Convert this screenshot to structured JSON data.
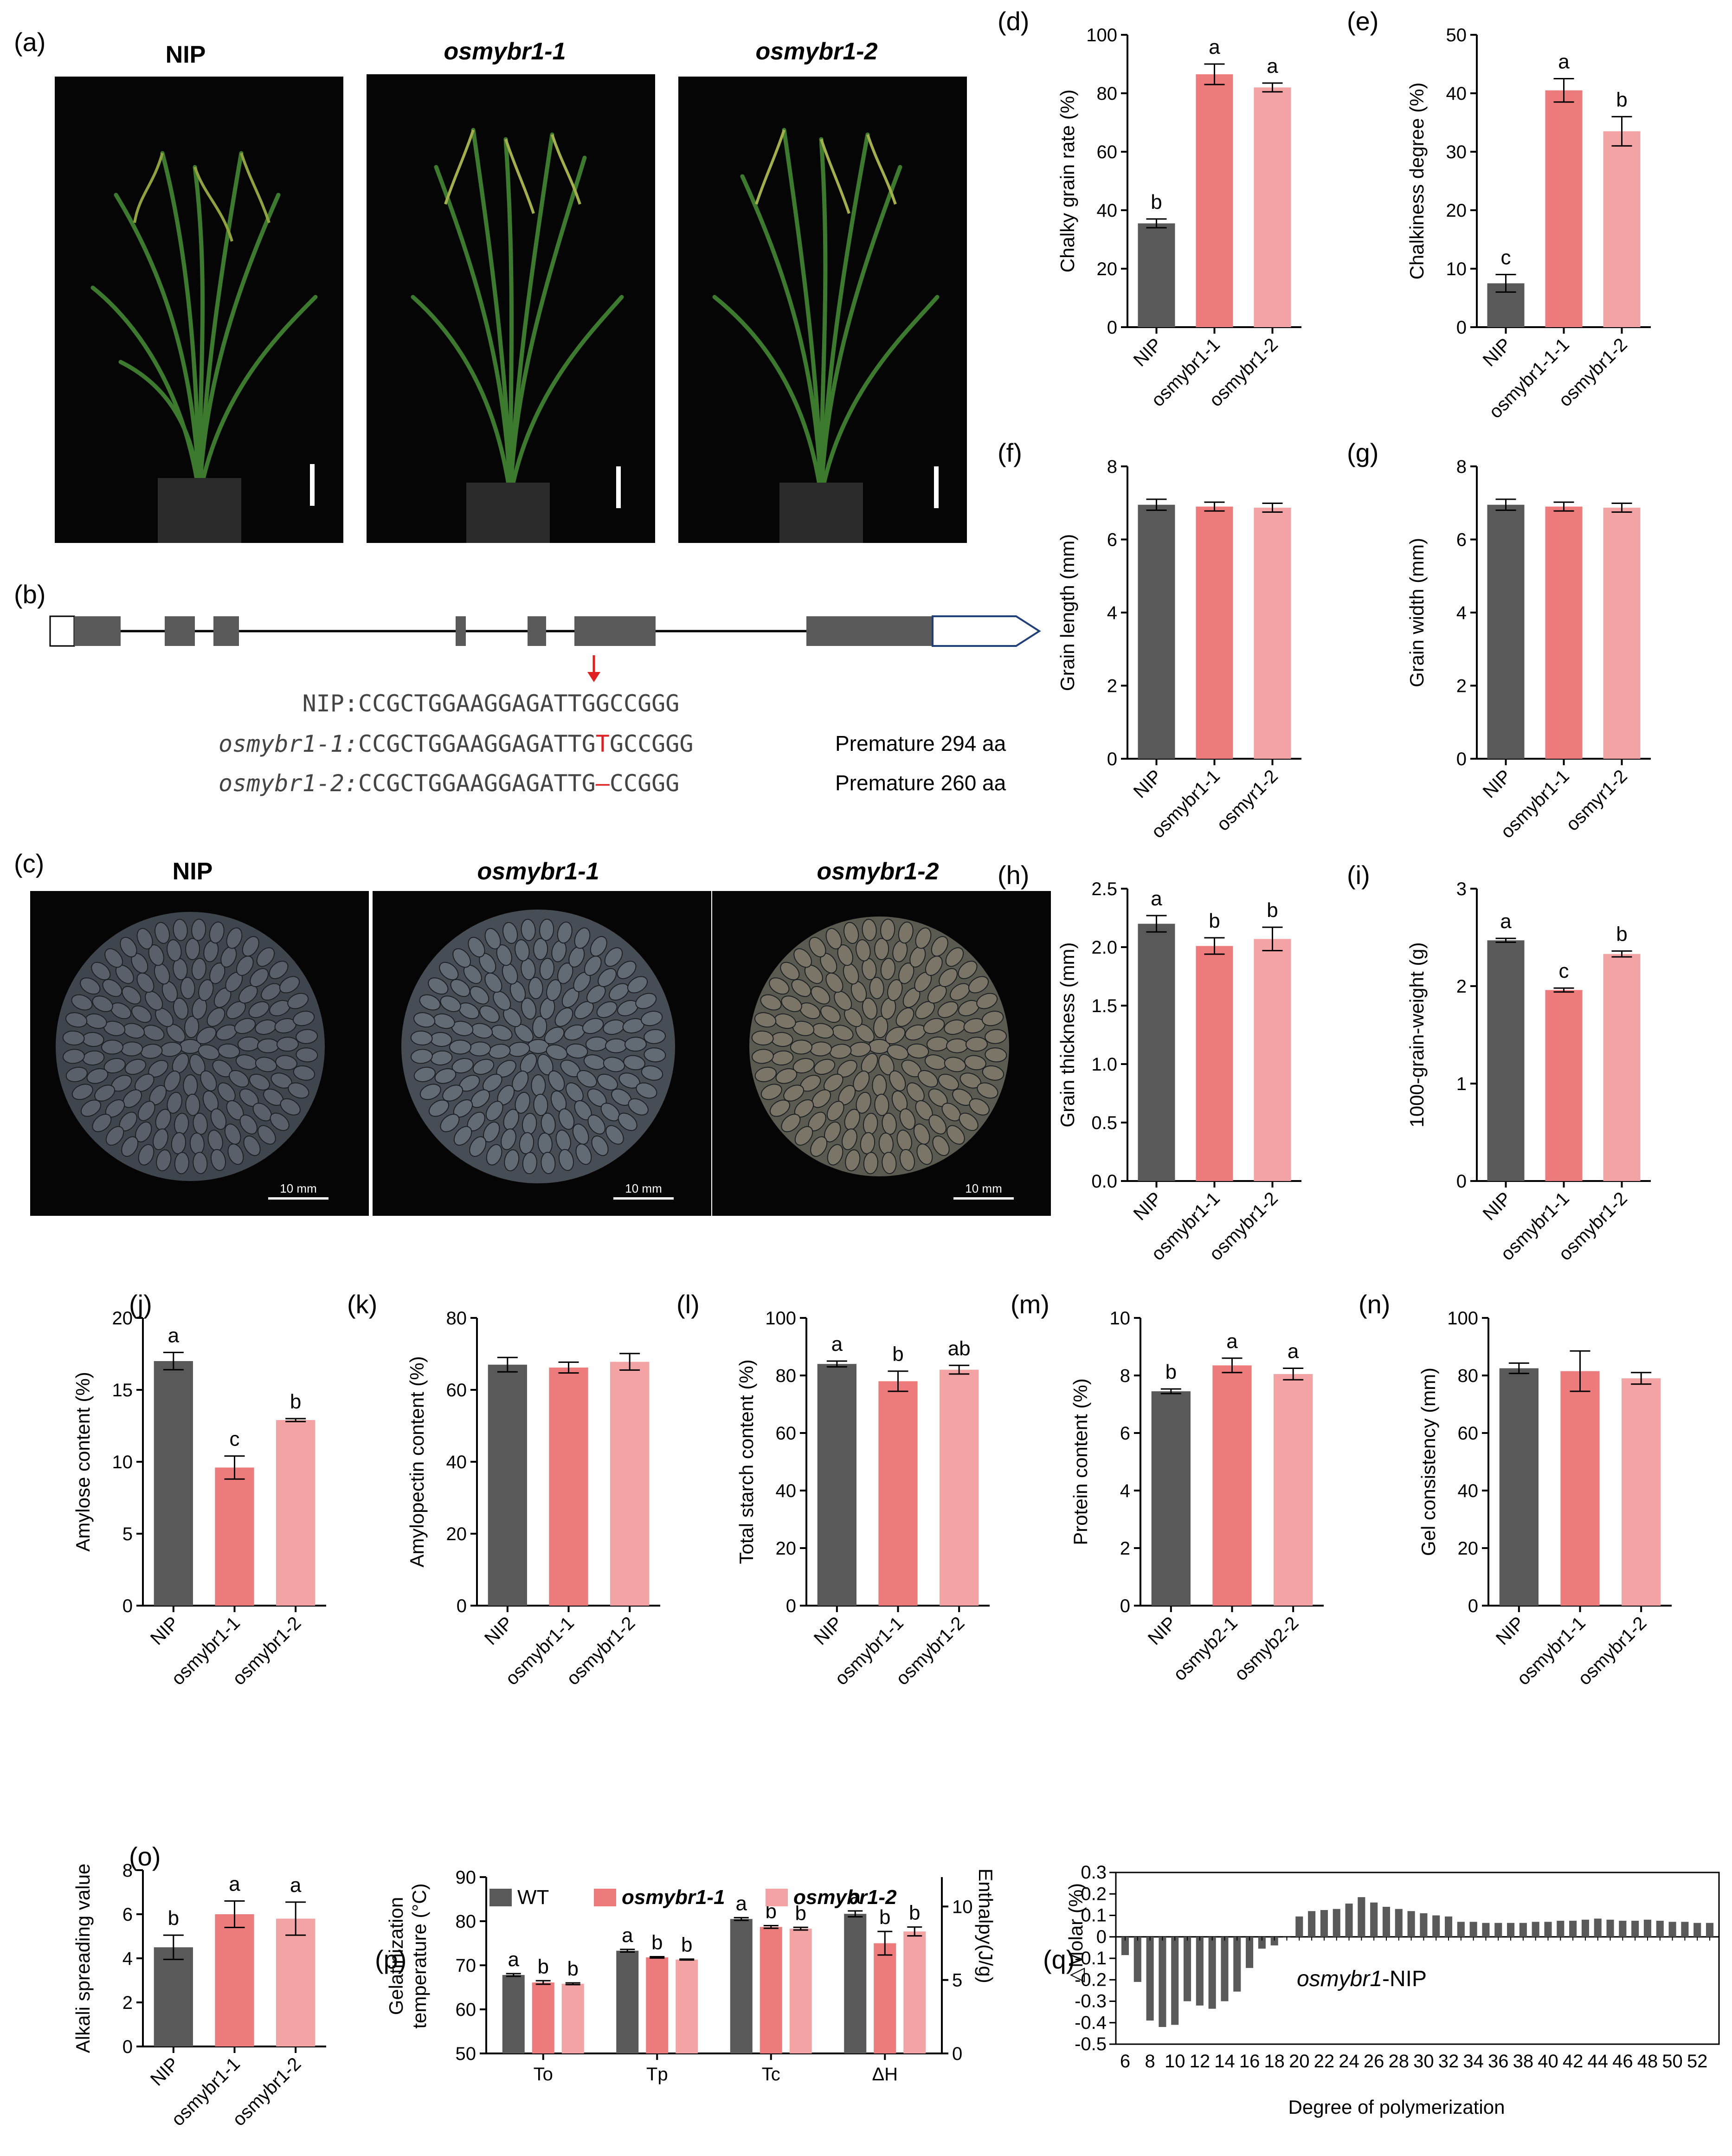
{
  "colors": {
    "nip": "#595959",
    "mut1": "#ee7b7b",
    "mut2": "#f3a3a3",
    "photo_bg": "#050505",
    "plant": "#3c7a2e",
    "seed": "#4a5058",
    "arrow": "#e02020"
  },
  "panels": {
    "a": {
      "label": "(a)",
      "titles": [
        "NIP",
        "osmybr1-1",
        "osmybr1-2"
      ]
    },
    "b": {
      "label": "(b)",
      "rows": [
        {
          "name": "NIP:",
          "pre": "CCGCTGGAAGGAGATTG",
          "mut": "G",
          "post": "CCGGG",
          "note": ""
        },
        {
          "name": "osmybr1-1:",
          "pre": "CCGCTGGAAGGAGATTG",
          "mut": "T",
          "post": "GCCGGG",
          "note": "Premature 294 aa"
        },
        {
          "name": "osmybr1-2:",
          "pre": "CCGCTGGAAGGAGATTG",
          "mut": "–",
          "post": "CCGGG",
          "note": "Premature 260 aa"
        }
      ]
    },
    "c": {
      "label": "(c)",
      "titles": [
        "NIP",
        "osmybr1-1",
        "osmybr1-2"
      ],
      "scale": "10 mm"
    }
  },
  "chart_data": [
    {
      "id": "d",
      "label": "(d)",
      "type": "bar",
      "categories": [
        "NIP",
        "osmybr1-1",
        "osmybr1-2"
      ],
      "values": [
        35.5,
        86.5,
        82
      ],
      "errors": [
        1.5,
        3.5,
        1.5
      ],
      "letters": [
        "b",
        "a",
        "a"
      ],
      "ylabel": "Chalky grain rate (%)",
      "ylim": [
        0,
        100
      ],
      "yticks": [
        "0",
        "20",
        "40",
        "60",
        "80",
        "100"
      ]
    },
    {
      "id": "e",
      "label": "(e)",
      "type": "bar",
      "categories": [
        "NIP",
        "osmybr1-1-1",
        "osmybr1-2"
      ],
      "values": [
        7.5,
        40.5,
        33.5
      ],
      "errors": [
        1.5,
        2,
        2.5
      ],
      "letters": [
        "c",
        "a",
        "b"
      ],
      "ylabel": "Chalkiness degree (%)",
      "ylim": [
        0,
        50
      ],
      "yticks": [
        "0",
        "10",
        "20",
        "30",
        "40",
        "50"
      ]
    },
    {
      "id": "f",
      "label": "(f)",
      "type": "bar",
      "categories": [
        "NIP",
        "osmybr1-1",
        "osmyr1-2"
      ],
      "values": [
        6.95,
        6.9,
        6.87
      ],
      "errors": [
        0.15,
        0.12,
        0.12
      ],
      "letters": [
        "",
        "",
        ""
      ],
      "ylabel": "Grain length (mm)",
      "ylim": [
        0,
        8
      ],
      "yticks": [
        "0",
        "2",
        "4",
        "6",
        "8"
      ]
    },
    {
      "id": "g",
      "label": "(g)",
      "type": "bar",
      "categories": [
        "NIP",
        "osmybr1-1",
        "osmyr1-2"
      ],
      "values": [
        6.95,
        6.9,
        6.87
      ],
      "errors": [
        0.15,
        0.12,
        0.12
      ],
      "letters": [
        "",
        "",
        ""
      ],
      "ylabel": "Grain width (mm)",
      "ylim": [
        0,
        8
      ],
      "yticks": [
        "0",
        "2",
        "4",
        "6",
        "8"
      ]
    },
    {
      "id": "h",
      "label": "(h)",
      "type": "bar",
      "categories": [
        "NIP",
        "osmybr1-1",
        "osmybr1-2"
      ],
      "values": [
        2.2,
        2.01,
        2.07
      ],
      "errors": [
        0.07,
        0.07,
        0.1
      ],
      "letters": [
        "a",
        "b",
        "b"
      ],
      "ylabel": "Grain thickness (mm)",
      "ylim": [
        0,
        2.5
      ],
      "yticks": [
        "0.0",
        "0.5",
        "1.0",
        "1.5",
        "2.0",
        "2.5"
      ]
    },
    {
      "id": "i",
      "label": "(i)",
      "type": "bar",
      "categories": [
        "NIP",
        "osmybr1-1",
        "osmybr1-2"
      ],
      "values": [
        2.47,
        1.96,
        2.33
      ],
      "errors": [
        0.02,
        0.02,
        0.03
      ],
      "letters": [
        "a",
        "c",
        "b"
      ],
      "ylabel": "1000-grain-weight (g)",
      "ylim": [
        0,
        3
      ],
      "yticks": [
        "0",
        "1",
        "2",
        "3"
      ]
    },
    {
      "id": "j",
      "label": "(j)",
      "type": "bar",
      "categories": [
        "NIP",
        "osmybr1-1",
        "osmybr1-2"
      ],
      "values": [
        17,
        9.6,
        12.9
      ],
      "errors": [
        0.6,
        0.8,
        0.1
      ],
      "letters": [
        "a",
        "c",
        "b"
      ],
      "ylabel": "Amylose content (%)",
      "ylim": [
        0,
        20
      ],
      "yticks": [
        "0",
        "5",
        "10",
        "15",
        "20"
      ]
    },
    {
      "id": "k",
      "label": "(k)",
      "type": "bar",
      "categories": [
        "NIP",
        "osmybr1-1",
        "osmybr1-2"
      ],
      "values": [
        67,
        66.2,
        67.8
      ],
      "errors": [
        2,
        1.5,
        2.3
      ],
      "letters": [
        "",
        "",
        ""
      ],
      "ylabel": "Amylopectin content (%)",
      "ylim": [
        0,
        80
      ],
      "yticks": [
        "0",
        "20",
        "40",
        "60",
        "80"
      ]
    },
    {
      "id": "l",
      "label": "(l)",
      "type": "bar",
      "categories": [
        "NIP",
        "osmybr1-1",
        "osmybr1-2"
      ],
      "values": [
        84,
        78,
        82
      ],
      "errors": [
        1,
        3.5,
        1.5
      ],
      "letters": [
        "a",
        "b",
        "ab"
      ],
      "ylabel": "Total starch content (%)",
      "ylim": [
        0,
        100
      ],
      "yticks": [
        "0",
        "20",
        "40",
        "60",
        "80",
        "100"
      ]
    },
    {
      "id": "m",
      "label": "(m)",
      "type": "bar",
      "categories": [
        "NIP",
        "osmyb2-1",
        "osmyb2-2"
      ],
      "values": [
        7.45,
        8.35,
        8.05
      ],
      "errors": [
        0.08,
        0.25,
        0.2
      ],
      "letters": [
        "b",
        "a",
        "a"
      ],
      "ylabel": "Protein content (%)",
      "ylim": [
        0,
        10
      ],
      "yticks": [
        "0",
        "2",
        "4",
        "6",
        "8",
        "10"
      ]
    },
    {
      "id": "n",
      "label": "(n)",
      "type": "bar",
      "categories": [
        "NIP",
        "osmybr1-1",
        "osmybr1-2"
      ],
      "values": [
        82.5,
        81.5,
        79
      ],
      "errors": [
        1.8,
        7,
        2
      ],
      "letters": [
        "",
        "",
        ""
      ],
      "ylabel": "Gel consistency (mm)",
      "ylim": [
        0,
        100
      ],
      "yticks": [
        "0",
        "20",
        "40",
        "60",
        "80",
        "100"
      ]
    },
    {
      "id": "o",
      "label": "(o)",
      "type": "bar",
      "categories": [
        "NIP",
        "osmybr1-1",
        "osmybr1-2"
      ],
      "values": [
        4.5,
        6,
        5.8
      ],
      "errors": [
        0.55,
        0.6,
        0.75
      ],
      "letters": [
        "b",
        "a",
        "a"
      ],
      "ylabel": "Alkali spreading value",
      "ylim": [
        0,
        8
      ],
      "yticks": [
        "0",
        "2",
        "4",
        "6",
        "8"
      ]
    }
  ],
  "chart_p": {
    "label": "(p)",
    "type": "bar",
    "legend": [
      "WT",
      "osmybr1-1",
      "osmybr1-2"
    ],
    "categories": [
      "To",
      "Tp",
      "Tc",
      "ΔH"
    ],
    "ylabel_lines": [
      "Gelatinization",
      "temperature (°C)"
    ],
    "ylabel_right": "Enthalpy(J/g)",
    "ylim": [
      50,
      90
    ],
    "yticks": [
      "50",
      "60",
      "70",
      "80",
      "90"
    ],
    "ylim_right": [
      0,
      12
    ],
    "yticks_right": [
      "0",
      "5",
      "10"
    ],
    "series": [
      {
        "name": "WT",
        "values": [
          67.8,
          73.3,
          80.5,
          9.5
        ],
        "errors": [
          0.3,
          0.3,
          0.3,
          0.2
        ]
      },
      {
        "name": "osmybr1-1",
        "values": [
          66.1,
          71.8,
          78.7,
          7.5
        ],
        "errors": [
          0.4,
          0.15,
          0.3,
          0.8
        ]
      },
      {
        "name": "osmybr1-2",
        "values": [
          65.8,
          71.3,
          78.3,
          8.3
        ],
        "errors": [
          0.2,
          0.1,
          0.3,
          0.3
        ]
      }
    ],
    "right_axis_category": "ΔH",
    "letters": [
      [
        "a",
        "b",
        "b"
      ],
      [
        "a",
        "b",
        "b"
      ],
      [
        "a",
        "b",
        "b"
      ],
      [
        "a",
        "b",
        "b"
      ]
    ]
  },
  "chart_q": {
    "label": "(q)",
    "type": "bar",
    "title_italic": "osmybr1",
    "title_rest": "-NIP",
    "ylabel": "△Molar (%)",
    "xlabel": "Degree of polymerization",
    "ylim": [
      -0.5,
      0.3
    ],
    "yticks": [
      "0.3",
      "0.2",
      "0.1",
      "0",
      "-0.1",
      "-0.2",
      "-0.3",
      "-0.4",
      "-0.5"
    ],
    "xticks": [
      "6",
      "8",
      "10",
      "12",
      "14",
      "16",
      "18",
      "20",
      "22",
      "24",
      "26",
      "28",
      "30",
      "32",
      "34",
      "36",
      "38",
      "40",
      "42",
      "44",
      "46",
      "48",
      "50",
      "52"
    ],
    "x": [
      6,
      7,
      8,
      9,
      10,
      11,
      12,
      13,
      14,
      15,
      16,
      17,
      18,
      19,
      20,
      21,
      22,
      23,
      24,
      25,
      26,
      27,
      28,
      29,
      30,
      31,
      32,
      33,
      34,
      35,
      36,
      37,
      38,
      39,
      40,
      41,
      42,
      43,
      44,
      45,
      46,
      47,
      48,
      49,
      50,
      51,
      52,
      53
    ],
    "values": [
      -0.085,
      -0.21,
      -0.39,
      -0.42,
      -0.41,
      -0.3,
      -0.32,
      -0.335,
      -0.3,
      -0.255,
      -0.145,
      -0.055,
      -0.04,
      0.0,
      0.095,
      0.12,
      0.125,
      0.13,
      0.155,
      0.185,
      0.16,
      0.14,
      0.13,
      0.12,
      0.11,
      0.1,
      0.095,
      0.07,
      0.07,
      0.065,
      0.065,
      0.065,
      0.065,
      0.07,
      0.07,
      0.075,
      0.075,
      0.08,
      0.085,
      0.08,
      0.075,
      0.075,
      0.08,
      0.075,
      0.07,
      0.07,
      0.065,
      0.065
    ]
  }
}
